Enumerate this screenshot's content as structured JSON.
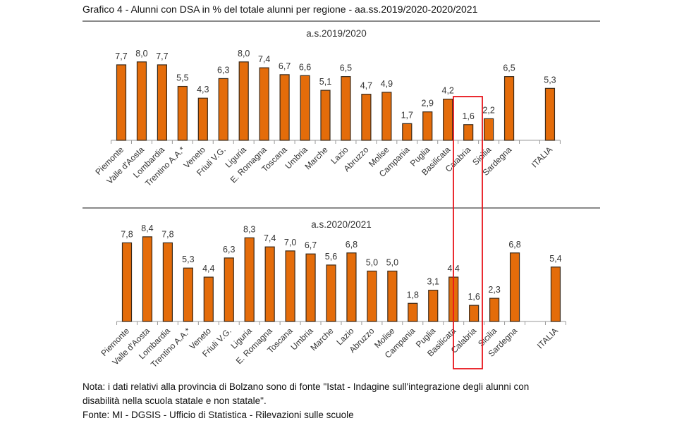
{
  "title": "Grafico 4 - Alunni con DSA in % del totale alunni per regione - aa.ss.2019/2020-2020/2021",
  "colors": {
    "bar": "#E46C0A",
    "bar_border": "#3a2a1a",
    "highlight": "#E8141B"
  },
  "highlight_category": "Calabria",
  "chart_data": [
    {
      "type": "bar",
      "title": "a.s.2019/2020",
      "categories": [
        "Piemonte",
        "Valle d'Aosta",
        "Lombardia",
        "Trentino A.A.*",
        "Veneto",
        "Friuli V.G.",
        "Liguria",
        "E. Romagna",
        "Toscana",
        "Umbria",
        "Marche",
        "Lazio",
        "Abruzzo",
        "Molise",
        "Campania",
        "Puglia",
        "Basilicata",
        "Calabria",
        "Sicilia",
        "Sardegna",
        "",
        "ITALIA"
      ],
      "values": [
        7.7,
        8.0,
        7.7,
        5.5,
        4.3,
        6.3,
        8.0,
        7.4,
        6.7,
        6.6,
        5.1,
        6.5,
        4.7,
        4.9,
        1.7,
        2.9,
        4.2,
        1.6,
        2.2,
        6.5,
        null,
        5.3
      ],
      "data_labels": [
        "7,7",
        "8,0",
        "7,7",
        "5,5",
        "4,3",
        "6,3",
        "8,0",
        "7,4",
        "6,7",
        "6,6",
        "5,1",
        "6,5",
        "4,7",
        "4,9",
        "1,7",
        "2,9",
        "4,2",
        "1,6",
        "2,2",
        "6,5",
        "",
        "5,3"
      ],
      "ylim": [
        0,
        8.5
      ]
    },
    {
      "type": "bar",
      "title": "a.s.2020/2021",
      "categories": [
        "Piemonte",
        "Valle d'Aosta",
        "Lombardia",
        "Trentino A.A.*",
        "Veneto",
        "Friuli V.G.",
        "Liguria",
        "E. Romagna",
        "Toscana",
        "Umbria",
        "Marche",
        "Lazio",
        "Abruzzo",
        "Molise",
        "Campania",
        "Puglia",
        "Basilicata",
        "Calabria",
        "Sicilia",
        "Sardegna",
        "",
        "ITALIA"
      ],
      "values": [
        7.8,
        8.4,
        7.8,
        5.3,
        4.4,
        6.3,
        8.3,
        7.4,
        7.0,
        6.7,
        5.6,
        6.8,
        5.0,
        5.0,
        1.8,
        3.1,
        4.4,
        1.6,
        2.3,
        6.8,
        null,
        5.4
      ],
      "data_labels": [
        "7,8",
        "8,4",
        "7,8",
        "5,3",
        "4,4",
        "6,3",
        "8,3",
        "7,4",
        "7,0",
        "6,7",
        "5,6",
        "6,8",
        "5,0",
        "5,0",
        "1,8",
        "3,1",
        "4,4",
        "1,6",
        "2,3",
        "6,8",
        "",
        "5,4"
      ],
      "ylim": [
        0,
        8.8
      ]
    }
  ],
  "notes": [
    "Nota: i dati relativi alla provincia di Bolzano sono di fonte \"Istat - Indagine sull'integrazione degli alunni con",
    "disabilità nella scuola statale e non statale\".",
    "Fonte: MI - DGSIS - Ufficio di Statistica - Rilevazioni sulle scuole"
  ]
}
